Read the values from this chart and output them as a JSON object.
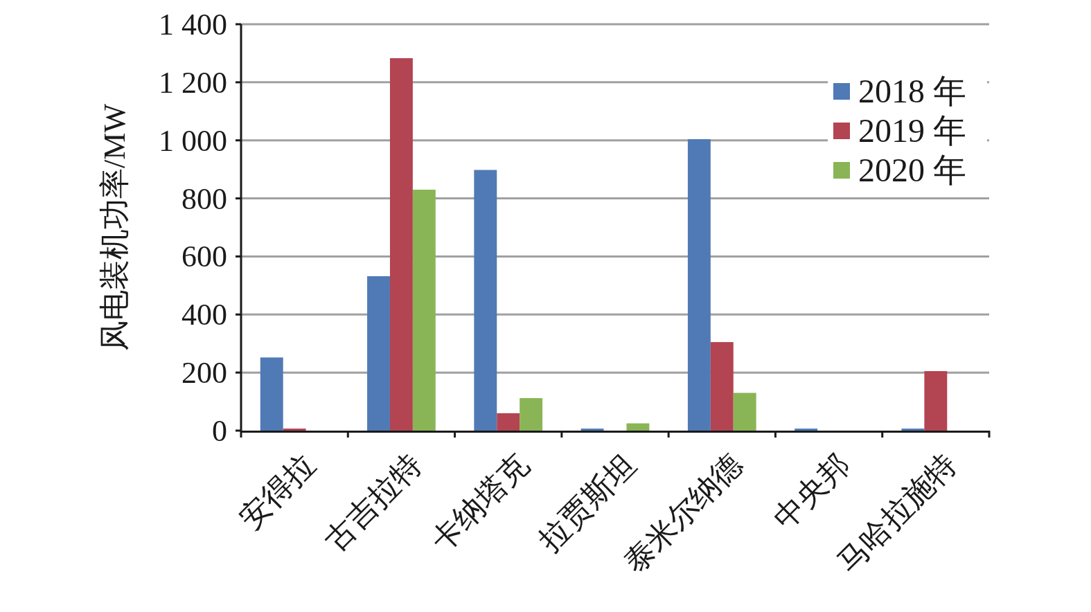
{
  "chart_data": {
    "type": "bar",
    "ylabel": "风电装机功率/MW",
    "categories": [
      "安得拉",
      "古吉拉特",
      "卡纳塔克",
      "拉贾斯坦",
      "泰米尔纳德",
      "中央邦",
      "马哈拉施特"
    ],
    "series": [
      {
        "name": "2018 年",
        "color": "#4f7ab5",
        "values": [
          252,
          532,
          898,
          7,
          1004,
          7,
          7
        ]
      },
      {
        "name": "2019 年",
        "color": "#b34452",
        "values": [
          7,
          1283,
          60,
          null,
          305,
          null,
          205
        ]
      },
      {
        "name": "2020 年",
        "color": "#8ab556",
        "values": [
          null,
          830,
          112,
          25,
          130,
          null,
          null
        ]
      }
    ],
    "ylim": [
      0,
      1400
    ],
    "yticks": [
      0,
      200,
      400,
      600,
      800,
      {
        "value": 1000,
        "label": "1 000"
      },
      {
        "value": 1200,
        "label": "1 200"
      },
      {
        "value": 1400,
        "label": "1 400"
      }
    ],
    "grid": "y",
    "legend": "top right"
  }
}
